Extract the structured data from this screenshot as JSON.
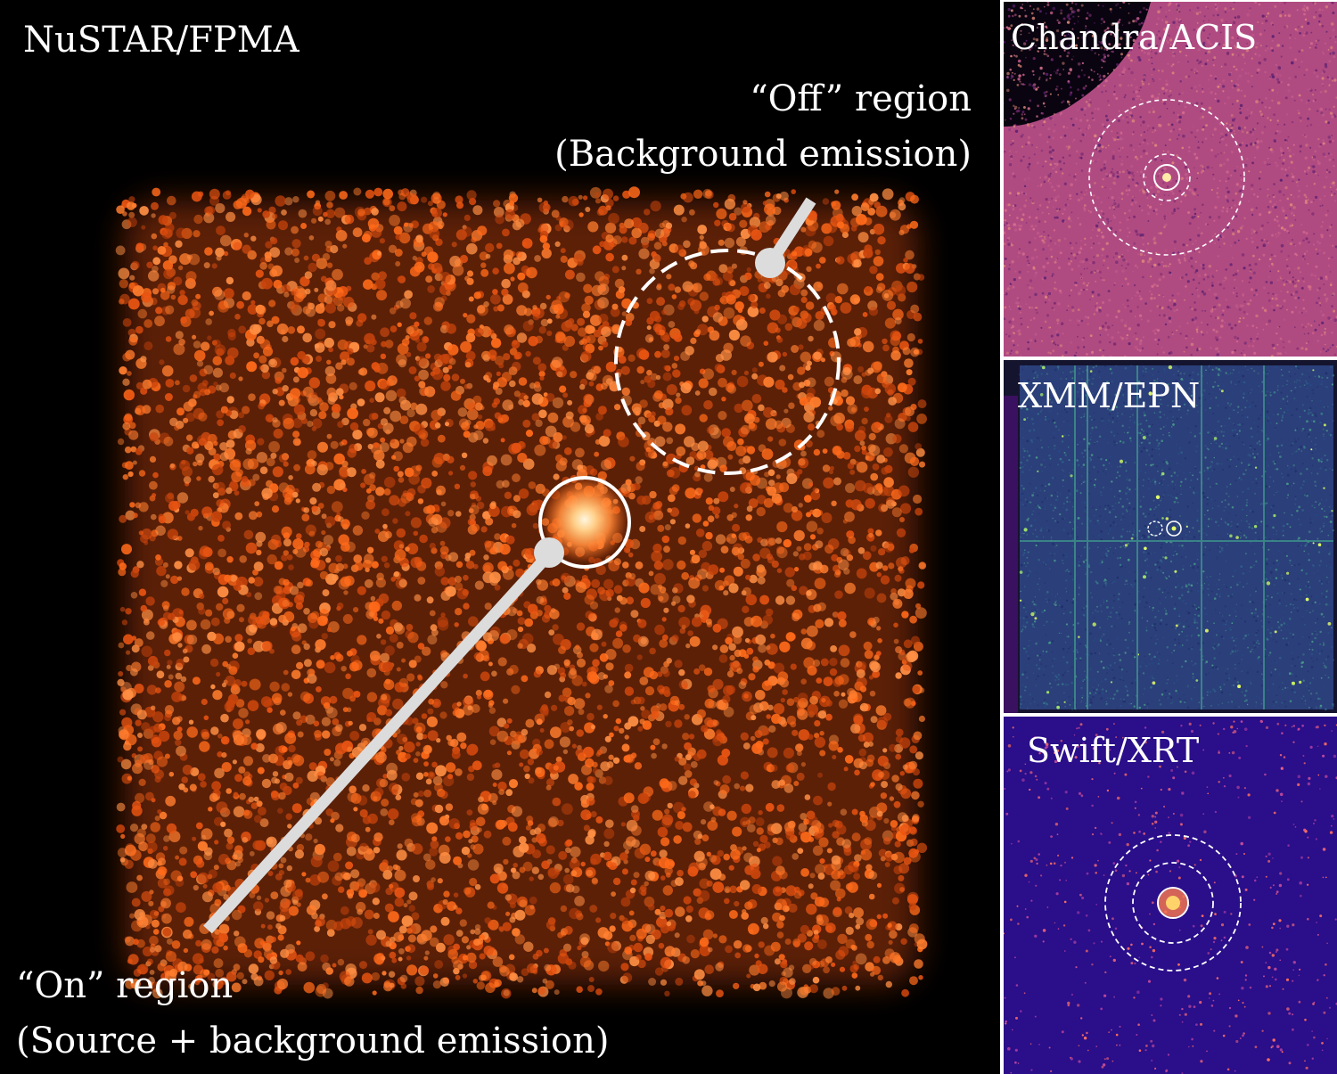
{
  "panels": {
    "nustar": {
      "title": "NuSTAR/FPMA",
      "off_region": {
        "line1": "“Off” region",
        "line2": "(Background emission)"
      },
      "on_region": {
        "line1": "“On” region",
        "line2": "(Source + background emission)"
      }
    },
    "chandra": {
      "title": "Chandra/ACIS"
    },
    "xmm": {
      "title": "XMM/EPN"
    },
    "swift": {
      "title": "Swift/XRT"
    }
  },
  "colors": {
    "nustar_glow": "#ff6a1a",
    "chandra_bg": "#b04b82",
    "xmm_bg": "#2b3f7a",
    "swift_bg": "#2a0e8a",
    "region_outline": "#ffffff"
  }
}
